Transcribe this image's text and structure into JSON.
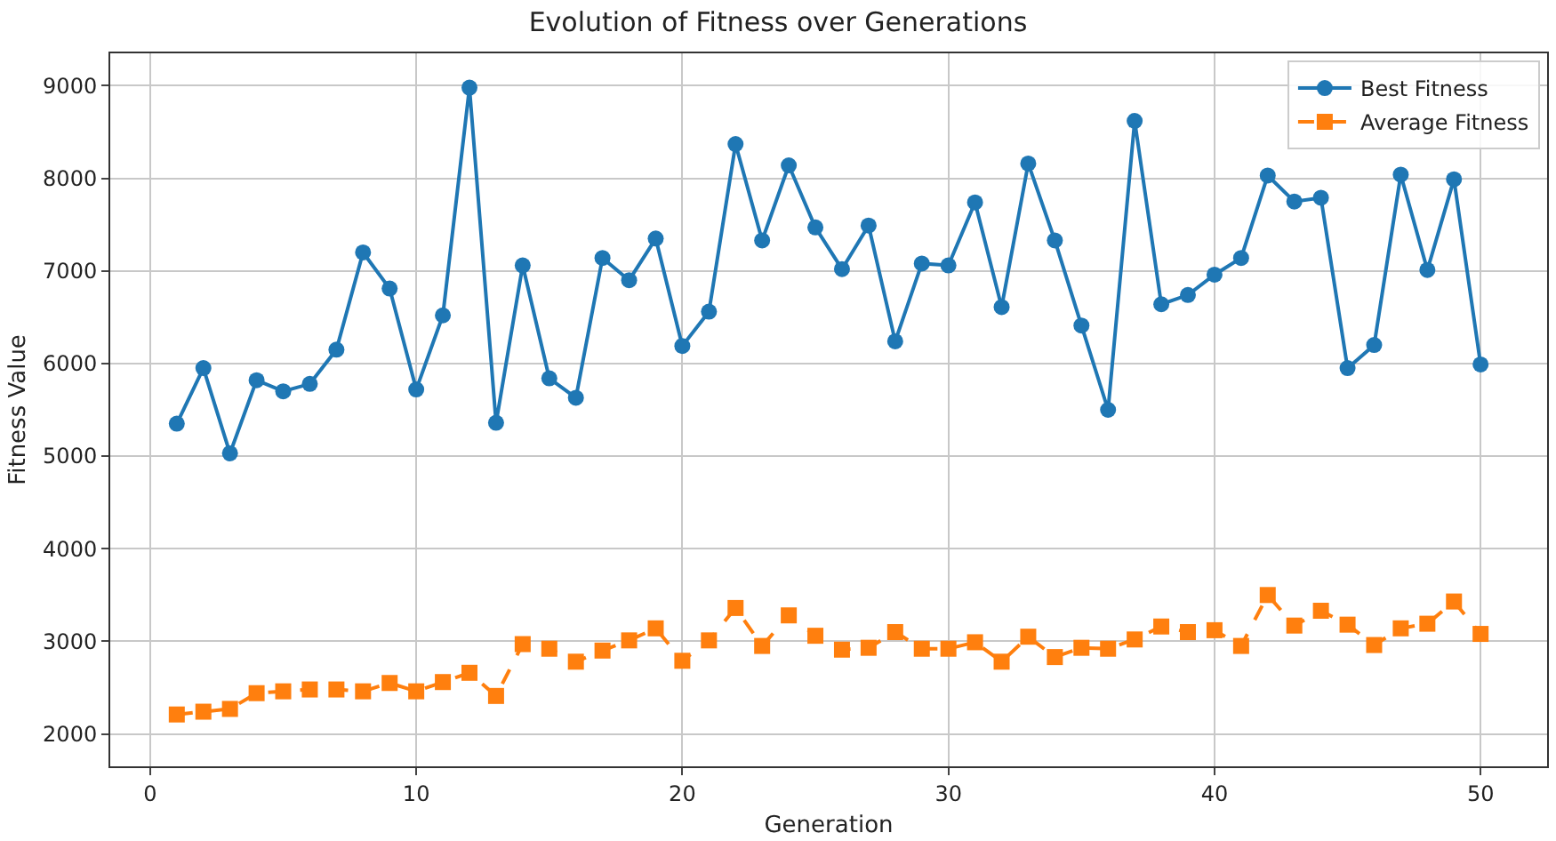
{
  "chart_data": {
    "type": "line",
    "title": "Evolution of Fitness over Generations",
    "xlabel": "Generation",
    "ylabel": "Fitness Value",
    "x": [
      1,
      2,
      3,
      4,
      5,
      6,
      7,
      8,
      9,
      10,
      11,
      12,
      13,
      14,
      15,
      16,
      17,
      18,
      19,
      20,
      21,
      22,
      23,
      24,
      25,
      26,
      27,
      28,
      29,
      30,
      31,
      32,
      33,
      34,
      35,
      36,
      37,
      38,
      39,
      40,
      41,
      42,
      43,
      44,
      45,
      46,
      47,
      48,
      49,
      50
    ],
    "series": [
      {
        "name": "Best Fitness",
        "color": "#1f77b4",
        "marker": "circle",
        "line_style": "solid",
        "values": [
          5350,
          5950,
          5030,
          5820,
          5700,
          5780,
          6150,
          7200,
          6810,
          5720,
          6520,
          8980,
          5360,
          7060,
          5840,
          5630,
          7140,
          6900,
          7350,
          6190,
          6560,
          8370,
          7330,
          8140,
          7470,
          7020,
          7490,
          6240,
          7080,
          7060,
          7740,
          6610,
          8160,
          7330,
          6410,
          5500,
          8620,
          6640,
          6740,
          6960,
          7140,
          8030,
          7750,
          7790,
          5950,
          6200,
          8040,
          7010,
          7990,
          5990
        ]
      },
      {
        "name": "Average Fitness",
        "color": "#ff7f0e",
        "marker": "square",
        "line_style": "dashed",
        "values": [
          2210,
          2240,
          2270,
          2440,
          2460,
          2480,
          2480,
          2460,
          2550,
          2460,
          2560,
          2660,
          2410,
          2970,
          2920,
          2780,
          2900,
          3010,
          3140,
          2790,
          3010,
          3360,
          2950,
          3280,
          3060,
          2910,
          2930,
          3100,
          2920,
          2920,
          2990,
          2780,
          3050,
          2830,
          2930,
          2920,
          3020,
          3160,
          3100,
          3120,
          2950,
          3500,
          3170,
          3330,
          3180,
          2960,
          3140,
          3190,
          3430,
          3080
        ]
      }
    ],
    "xlim": [
      -1.5,
      52.5
    ],
    "xticks": [
      0,
      10,
      20,
      30,
      40,
      50
    ],
    "ylim": [
      1650,
      9350
    ],
    "yticks": [
      2000,
      3000,
      4000,
      5000,
      6000,
      7000,
      8000,
      9000
    ],
    "grid": true,
    "legend": "top right"
  }
}
